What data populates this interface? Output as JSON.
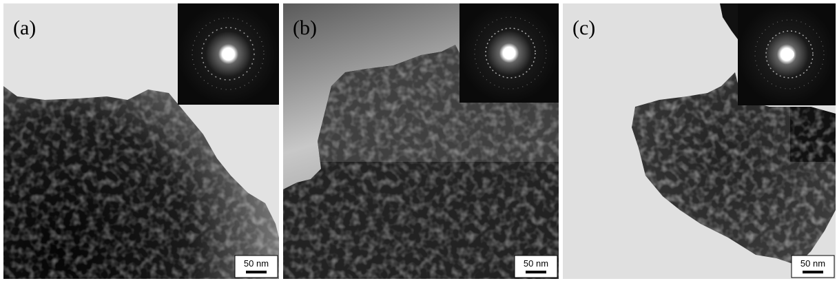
{
  "panels": [
    {
      "label": "(a)",
      "scale_bar": "50 nm"
    },
    {
      "label": "(b)",
      "scale_bar": "50 nm"
    },
    {
      "label": "(c)",
      "scale_bar": "50 nm"
    }
  ]
}
